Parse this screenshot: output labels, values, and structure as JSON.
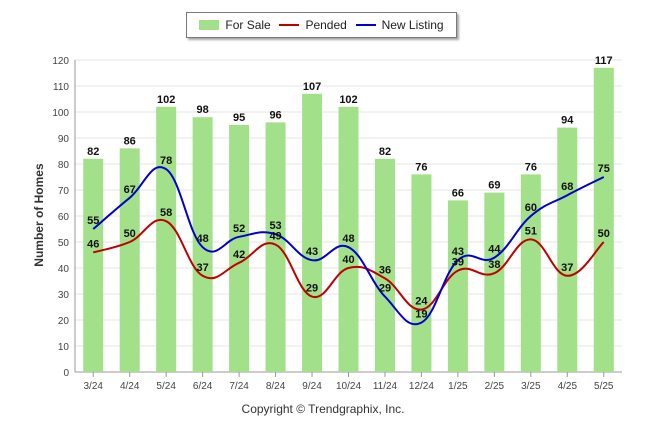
{
  "chart_data": {
    "type": "bar",
    "categories": [
      "3/24",
      "4/24",
      "5/24",
      "6/24",
      "7/24",
      "8/24",
      "9/24",
      "10/24",
      "11/24",
      "12/24",
      "1/25",
      "2/25",
      "3/25",
      "4/25",
      "5/25"
    ],
    "series": [
      {
        "name": "For Sale",
        "type": "bar",
        "color": "#a3e08a",
        "values": [
          82,
          86,
          102,
          98,
          95,
          96,
          107,
          102,
          82,
          76,
          66,
          69,
          76,
          94,
          117
        ]
      },
      {
        "name": "Pended",
        "type": "line",
        "color": "#c00000",
        "values": [
          46,
          50,
          58,
          37,
          42,
          49,
          29,
          40,
          36,
          24,
          39,
          38,
          51,
          37,
          50
        ]
      },
      {
        "name": "New Listing",
        "type": "line",
        "color": "#0000d0",
        "values": [
          55,
          67,
          78,
          48,
          52,
          53,
          43,
          48,
          29,
          19,
          43,
          44,
          60,
          68,
          75
        ]
      }
    ],
    "yticks": [
      "0",
      "10",
      "20",
      "30",
      "40",
      "50",
      "60",
      "70",
      "80",
      "90",
      "100",
      "110",
      "120"
    ],
    "ylim": [
      0,
      120
    ],
    "ylabel": "Number of Homes",
    "legend_position": "top-center",
    "grid": true,
    "copyright": "Copyright © Trendgraphix, Inc."
  }
}
